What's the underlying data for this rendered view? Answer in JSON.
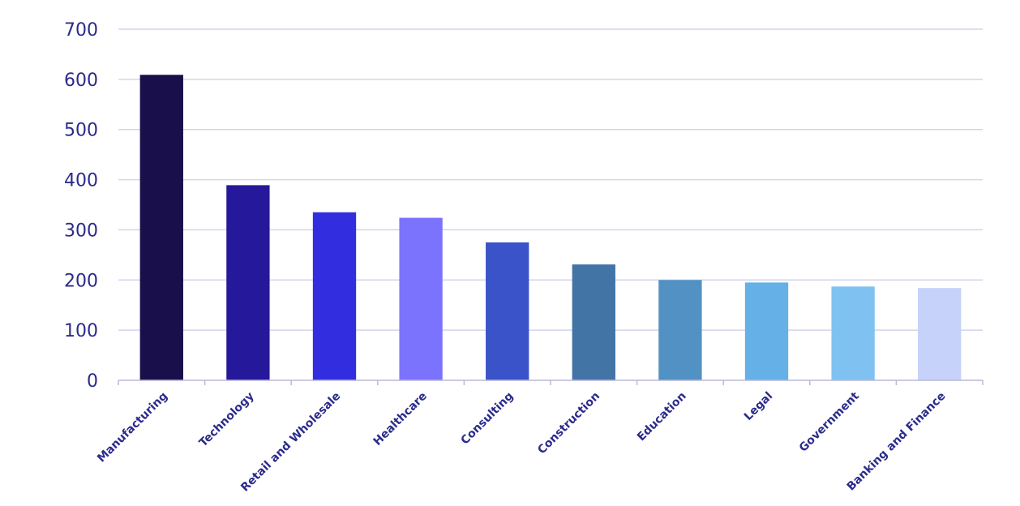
{
  "chart_data": {
    "type": "bar",
    "title": "",
    "xlabel": "",
    "ylabel": "",
    "ylim": [
      0,
      700
    ],
    "yticks": [
      0,
      100,
      200,
      300,
      400,
      500,
      600,
      700
    ],
    "grid": true,
    "legend": "none",
    "categories": [
      "Manufacturing",
      "Technology",
      "Retail and Wholesale",
      "Healthcare",
      "Consulting",
      "Construction",
      "Education",
      "Legal",
      "Government",
      "Banking and Finance"
    ],
    "values": [
      609,
      389,
      335,
      324,
      275,
      231,
      200,
      195,
      187,
      184
    ],
    "colors": [
      "#190f4a",
      "#25189a",
      "#332de0",
      "#7b72fe",
      "#3b53c8",
      "#4274a6",
      "#5191c3",
      "#65b0e6",
      "#7fc2f2",
      "#c6d2fa"
    ]
  },
  "colors": {
    "text": "#2b2b8c",
    "grid": "#d4d4ec",
    "axis": "#b9b9dc"
  }
}
